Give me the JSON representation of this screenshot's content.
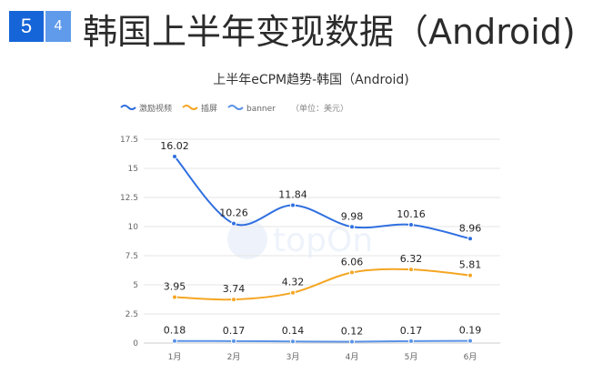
{
  "header": {
    "badge_major": "5",
    "badge_minor": "4",
    "title": "韩国上半年变现数据（Android)"
  },
  "watermark": "topOn",
  "colors": {
    "badge_major": "#1565d8",
    "badge_minor": "#5f9bea",
    "series_1": "#2f6fe0",
    "series_2": "#f5a623",
    "series_3": "#5b93e6"
  },
  "chart_data": {
    "type": "line",
    "title": "上半年eCPM趋势-韩国（Android)",
    "unit_note": "（单位：美元）",
    "categories": [
      "1月",
      "2月",
      "3月",
      "4月",
      "5月",
      "6月"
    ],
    "ylim": [
      0,
      17.5
    ],
    "yticks": [
      "0",
      "2.5",
      "5",
      "7.5",
      "10",
      "12.5",
      "15",
      "17.5"
    ],
    "grid": true,
    "legend_position": "top-left",
    "series": [
      {
        "name": "激励视频",
        "values": [
          16.02,
          10.26,
          11.84,
          9.98,
          10.16,
          8.96
        ],
        "labels": [
          "16.02",
          "10.26",
          "11.84",
          "9.98",
          "10.16",
          "8.96"
        ]
      },
      {
        "name": "插屏",
        "values": [
          3.95,
          3.74,
          4.32,
          6.06,
          6.32,
          5.81
        ],
        "labels": [
          "3.95",
          "3.74",
          "4.32",
          "6.06",
          "6.32",
          "5.81"
        ]
      },
      {
        "name": "banner",
        "values": [
          0.18,
          0.17,
          0.14,
          0.12,
          0.17,
          0.19
        ],
        "labels": [
          "0.18",
          "0.17",
          "0.14",
          "0.12",
          "0.17",
          "0.19"
        ]
      }
    ]
  }
}
